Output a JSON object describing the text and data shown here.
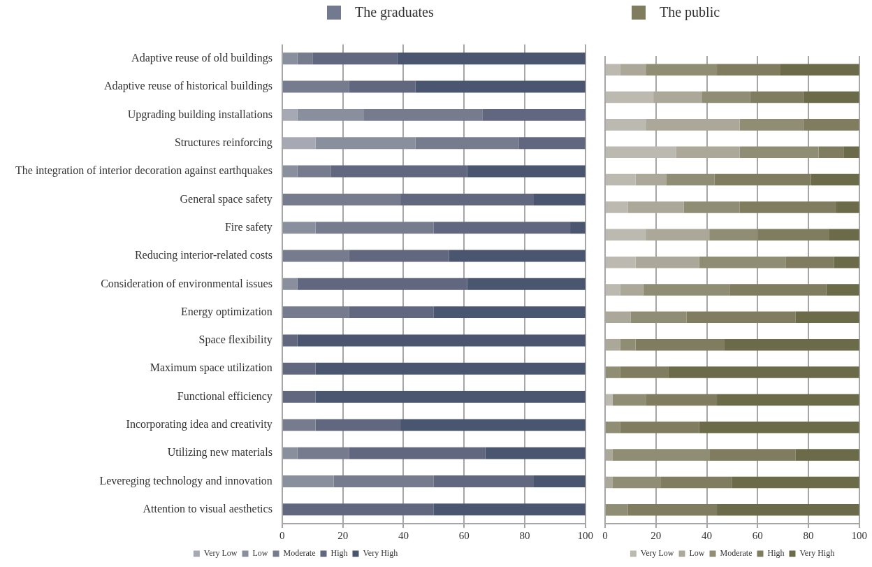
{
  "chart_data": [
    {
      "type": "bar",
      "orientation": "horizontal",
      "stacked": true,
      "title": "The graduates",
      "categories": [
        "Adaptive reuse of old buildings",
        "Adaptive reuse of historical buildings",
        "Upgrading building installations",
        "Structures reinforcing",
        "The integration of interior decoration against earthquakes",
        "General space safety",
        "Fire safety",
        "Reducing interior-related costs",
        "Consideration of environmental issues",
        "Energy optimization",
        "Space flexibility",
        "Maximum space utilization",
        "Functional efficiency",
        "Incorporating idea and creativity",
        "Utilizing new materials",
        "Levereging technology and innovation",
        "Attention to visual aesthetics"
      ],
      "series": [
        {
          "name": "Very Low",
          "color": "#a6a9b3",
          "values": [
            0,
            0,
            5,
            11,
            0,
            0,
            0,
            0,
            0,
            0,
            0,
            0,
            0,
            0,
            0,
            0,
            0
          ]
        },
        {
          "name": "Low",
          "color": "#8a8f9e",
          "values": [
            5,
            0,
            22,
            33,
            5,
            0,
            11,
            0,
            5,
            0,
            0,
            0,
            0,
            0,
            5,
            17,
            0
          ]
        },
        {
          "name": "Moderate",
          "color": "#767b8e",
          "values": [
            5,
            22,
            39,
            34,
            11,
            39,
            39,
            22,
            0,
            22,
            0,
            0,
            0,
            11,
            17,
            33,
            0
          ]
        },
        {
          "name": "High",
          "color": "#60677f",
          "values": [
            28,
            22,
            34,
            22,
            45,
            44,
            45,
            33,
            56,
            28,
            5,
            11,
            11,
            28,
            45,
            33,
            50
          ]
        },
        {
          "name": "Very High",
          "color": "#4a5570",
          "values": [
            62,
            56,
            0,
            0,
            39,
            17,
            5,
            45,
            39,
            50,
            95,
            89,
            89,
            61,
            33,
            17,
            50
          ]
        }
      ],
      "xlim": [
        0,
        100
      ],
      "xticks": [
        0,
        20,
        40,
        60,
        80,
        100
      ],
      "grid": "x",
      "legend": "bottom"
    },
    {
      "type": "bar",
      "orientation": "horizontal",
      "stacked": true,
      "title": "The public",
      "categories": [
        null,
        null,
        null,
        null,
        null,
        null,
        null,
        null,
        null,
        null,
        null,
        null,
        null,
        null,
        null,
        null,
        null
      ],
      "series": [
        {
          "name": "Very Low",
          "color": "#bcb9b0",
          "values": [
            6,
            19,
            16,
            28,
            12,
            9,
            16,
            12,
            6,
            0,
            0,
            0,
            3,
            0,
            0,
            0,
            0
          ]
        },
        {
          "name": "Low",
          "color": "#aba899",
          "values": [
            10,
            19,
            37,
            25,
            12,
            22,
            25,
            25,
            9,
            10,
            6,
            0,
            0,
            0,
            3,
            3,
            0
          ]
        },
        {
          "name": "Moderate",
          "color": "#8f8d74",
          "values": [
            28,
            19,
            25,
            31,
            19,
            22,
            19,
            34,
            34,
            22,
            6,
            6,
            13,
            6,
            38,
            19,
            9
          ]
        },
        {
          "name": "High",
          "color": "#7f7c60",
          "values": [
            25,
            21,
            22,
            10,
            38,
            38,
            28,
            19,
            38,
            43,
            35,
            19,
            28,
            31,
            34,
            28,
            35
          ]
        },
        {
          "name": "Very High",
          "color": "#6b6b4a",
          "values": [
            31,
            22,
            0,
            6,
            19,
            9,
            12,
            10,
            13,
            25,
            53,
            75,
            56,
            63,
            25,
            50,
            56
          ]
        }
      ],
      "xlim": [
        0,
        100
      ],
      "xticks": [
        0,
        20,
        40,
        60,
        80,
        100
      ],
      "grid": "x",
      "legend": "bottom",
      "tick_labels": "x"
    }
  ]
}
